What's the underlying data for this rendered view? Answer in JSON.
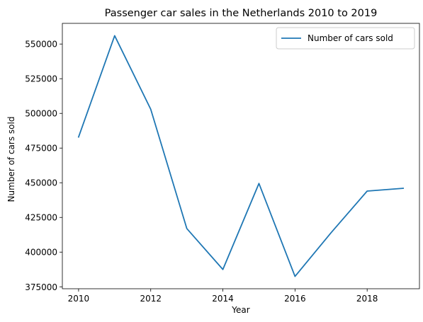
{
  "chart_data": {
    "type": "line",
    "title": "Passenger car sales in the Netherlands 2010 to 2019",
    "xlabel": "Year",
    "ylabel": "Number of cars sold",
    "x": [
      2010,
      2011,
      2012,
      2013,
      2014,
      2015,
      2016,
      2017,
      2018,
      2019
    ],
    "series": [
      {
        "name": "Number of cars sold",
        "color": "#1f77b4",
        "values": [
          483000,
          556000,
          503000,
          417000,
          387500,
          449500,
          382500,
          414000,
          444000,
          446000
        ]
      }
    ],
    "xticks": [
      2010,
      2012,
      2014,
      2016,
      2018
    ],
    "xtick_labels": [
      "2010",
      "2012",
      "2014",
      "2016",
      "2018"
    ],
    "yticks": [
      375000,
      400000,
      425000,
      450000,
      475000,
      500000,
      525000,
      550000
    ],
    "ytick_labels": [
      "375000",
      "400000",
      "425000",
      "450000",
      "475000",
      "500000",
      "525000",
      "550000"
    ],
    "xlim": [
      2009.55,
      2019.45
    ],
    "ylim": [
      373600,
      564900
    ],
    "grid": false,
    "legend_position": "upper right"
  }
}
